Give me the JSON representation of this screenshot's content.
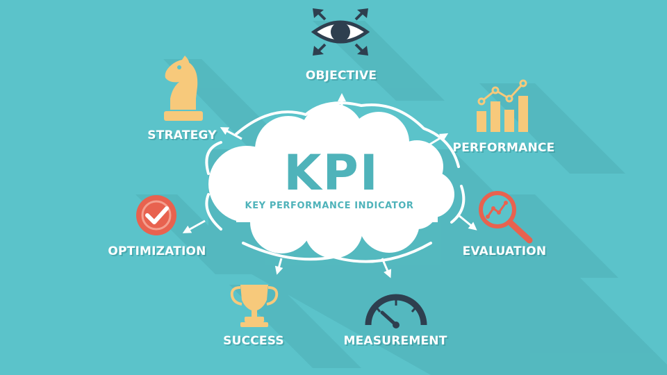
{
  "center": {
    "title": "KPI",
    "subtitle": "KEY PERFORMANCE INDICATOR"
  },
  "nodes": [
    {
      "id": "objective",
      "label": "OBJECTIVE",
      "icon": "eye-with-arrows-icon",
      "color": "#2E3F4F"
    },
    {
      "id": "strategy",
      "label": "STRATEGY",
      "icon": "chess-knight-icon",
      "color": "#F7C97B"
    },
    {
      "id": "performance",
      "label": "PERFORMANCE",
      "icon": "bar-chart-trend-icon",
      "color": "#F7C97B"
    },
    {
      "id": "optimization",
      "label": "OPTIMIZATION",
      "icon": "check-badge-icon",
      "color": "#E8624F"
    },
    {
      "id": "evaluation",
      "label": "EVALUATION",
      "icon": "magnifier-chart-icon",
      "color": "#E8624F"
    },
    {
      "id": "success",
      "label": "SUCCESS",
      "icon": "trophy-icon",
      "color": "#F7C97B"
    },
    {
      "id": "measurement",
      "label": "MEASUREMENT",
      "icon": "gauge-icon",
      "color": "#2E3F4F"
    }
  ],
  "colors": {
    "background": "#5BC3CA",
    "cloud": "#FFFFFF",
    "accent_text": "#4FB3BA",
    "shadow": "#4FB0B7"
  }
}
